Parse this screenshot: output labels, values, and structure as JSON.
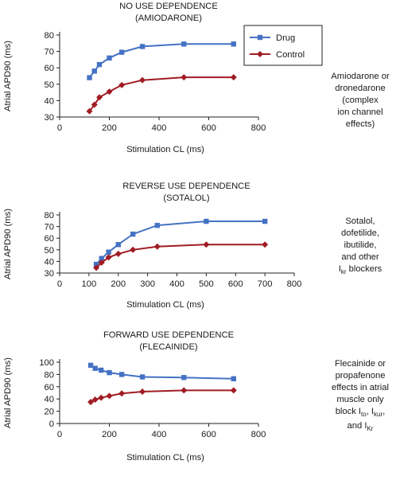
{
  "chart_data": [
    {
      "type": "line",
      "title": "NO USE DEPENDENCE",
      "subtitle": "(AMIODARONE)",
      "xlabel": "Stimulation CL (ms)",
      "ylabel": "Atrial APD90 (ms)",
      "xlim": [
        0,
        800
      ],
      "ylim": [
        30,
        80
      ],
      "xticks": [
        0,
        200,
        400,
        600,
        800
      ],
      "yticks": [
        30,
        40,
        50,
        60,
        70,
        80
      ],
      "legend": "top-right",
      "series": [
        {
          "name": "Drug",
          "color": "#4472c4",
          "marker": "square",
          "x": [
            120,
            140,
            160,
            200,
            250,
            333,
            500,
            700
          ],
          "y": [
            54,
            58,
            62,
            66,
            69.5,
            73,
            74.5,
            74.5
          ]
        },
        {
          "name": "Control",
          "color": "#a01c24",
          "marker": "diamond",
          "x": [
            120,
            140,
            160,
            200,
            250,
            333,
            500,
            700
          ],
          "y": [
            33.5,
            37.5,
            42,
            45.5,
            49.5,
            52.5,
            54.2,
            54.2
          ]
        }
      ]
    },
    {
      "type": "line",
      "title": "REVERSE USE DEPENDENCE",
      "subtitle": "(SOTALOL)",
      "xlabel": "Stimulation CL (ms)",
      "ylabel": "Atrial APD90 (ms)",
      "xlim": [
        0,
        800
      ],
      "ylim": [
        30,
        80
      ],
      "xticks": [
        0,
        100,
        200,
        300,
        400,
        500,
        600,
        700,
        800
      ],
      "yticks": [
        30,
        40,
        50,
        60,
        70,
        80
      ],
      "series": [
        {
          "name": "Drug",
          "color": "#4472c4",
          "marker": "square",
          "x": [
            125,
            143,
            167,
            200,
            250,
            333,
            500,
            700
          ],
          "y": [
            37.5,
            42.5,
            48,
            54.5,
            63.5,
            71,
            74.5,
            74.5
          ]
        },
        {
          "name": "Control",
          "color": "#a01c24",
          "marker": "diamond",
          "x": [
            125,
            143,
            167,
            200,
            250,
            333,
            500,
            700
          ],
          "y": [
            34.5,
            39,
            43.5,
            46.5,
            50,
            52.8,
            54.5,
            54.5
          ]
        }
      ]
    },
    {
      "type": "line",
      "title": "FORWARD USE DEPENDENCE",
      "subtitle": "(FLECAINIDE)",
      "xlabel": "Stimulation CL (ms)",
      "ylabel": "Atrial APD90 (ms)",
      "xlim": [
        0,
        800
      ],
      "ylim": [
        0,
        100
      ],
      "xticks": [
        0,
        200,
        400,
        600,
        800
      ],
      "yticks": [
        0,
        20,
        40,
        60,
        80,
        100
      ],
      "series": [
        {
          "name": "Drug",
          "color": "#4472c4",
          "marker": "square",
          "x": [
            125,
            143,
            167,
            200,
            250,
            333,
            500,
            700
          ],
          "y": [
            95,
            90,
            87,
            83,
            80,
            76,
            75,
            73
          ]
        },
        {
          "name": "Control",
          "color": "#a01c24",
          "marker": "diamond",
          "x": [
            125,
            143,
            167,
            200,
            250,
            333,
            500,
            700
          ],
          "y": [
            35,
            39,
            42,
            45,
            49,
            52,
            54,
            54
          ]
        }
      ]
    }
  ],
  "notes": {
    "amiodarone": [
      "Amiodarone or",
      "dronedarone",
      "(complex",
      "ion channel",
      "effects)"
    ],
    "sotalol_lines": [
      "Sotalol,",
      "dofetilide,",
      "ibutilide,",
      "and other"
    ],
    "sotalol_ikr_main": "I",
    "sotalol_ikr_sub": "kr",
    "sotalol_ikr_tail": " blockers",
    "flecainide_lines": [
      "Flecainide or",
      "propafenone",
      "effects in atrial",
      "muscle only"
    ],
    "flec_block": "block I",
    "flec_ito_sub": "to",
    "flec_comma": ", I",
    "flec_ikur_sub": "kur",
    "flec_comma2": ",",
    "flec_and": "and I",
    "flec_ikr_sub": "Kr"
  }
}
